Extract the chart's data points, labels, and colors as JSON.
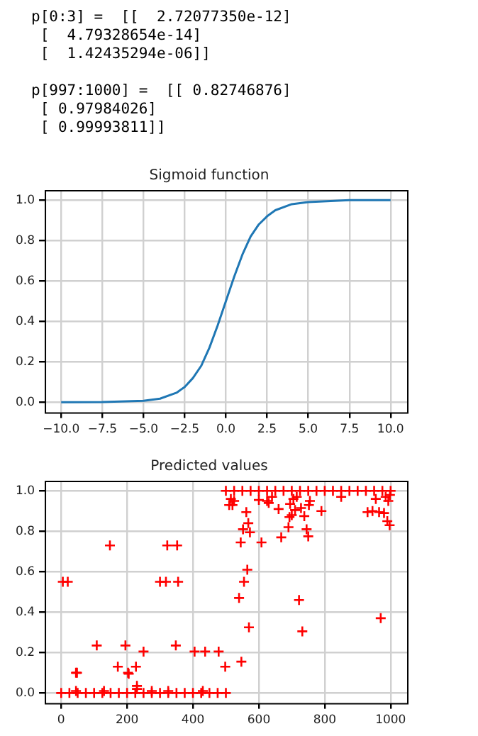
{
  "chart_data": [
    {
      "type": "other",
      "annotations": [
        "p[0:3] =  [[  2.72077350e-12]\n [  4.79328654e-14]\n [  1.42435294e-06]]",
        "p[997:1000] =  [[ 0.82746876]\n [ 0.97984026]\n [ 0.99993811]]"
      ]
    },
    {
      "type": "line",
      "title": "Sigmoid function",
      "color": "#1f77b4",
      "grid": true,
      "x": [
        -10,
        -7.5,
        -5,
        -4,
        -3,
        -2.5,
        -2,
        -1.5,
        -1,
        -0.5,
        0,
        0.5,
        1,
        1.5,
        2,
        2.5,
        3,
        4,
        5,
        7.5,
        10
      ],
      "values": [
        0,
        0.001,
        0.007,
        0.018,
        0.047,
        0.076,
        0.12,
        0.18,
        0.27,
        0.38,
        0.5,
        0.62,
        0.73,
        0.82,
        0.88,
        0.92,
        0.95,
        0.98,
        0.99,
        1.0,
        1.0
      ],
      "xlim": [
        -11,
        11
      ],
      "ylim": [
        -0.05,
        1.05
      ],
      "xticks": [
        {
          "value": -10,
          "label": "−10.0"
        },
        {
          "value": -7.5,
          "label": "−7.5"
        },
        {
          "value": -5,
          "label": "−5.0"
        },
        {
          "value": -2.5,
          "label": "−2.5"
        },
        {
          "value": 0,
          "label": "0.0"
        },
        {
          "value": 2.5,
          "label": "2.5"
        },
        {
          "value": 5,
          "label": "5.0"
        },
        {
          "value": 7.5,
          "label": "7.5"
        },
        {
          "value": 10,
          "label": "10.0"
        }
      ],
      "yticks": [
        {
          "value": 0,
          "label": "0.0"
        },
        {
          "value": 0.2,
          "label": "0.2"
        },
        {
          "value": 0.4,
          "label": "0.4"
        },
        {
          "value": 0.6,
          "label": "0.6"
        },
        {
          "value": 0.8,
          "label": "0.8"
        },
        {
          "value": 1,
          "label": "1.0"
        }
      ]
    },
    {
      "type": "scatter",
      "title": "Predicted values",
      "color": "#ff0000",
      "marker": "cross",
      "grid": true,
      "x": [
        0,
        25,
        50,
        75,
        100,
        125,
        150,
        175,
        200,
        225,
        250,
        275,
        300,
        325,
        350,
        375,
        400,
        425,
        450,
        475,
        500,
        45,
        130,
        230,
        275,
        325,
        430,
        5,
        20,
        45,
        48,
        108,
        148,
        172,
        195,
        203,
        205,
        227,
        230,
        250,
        300,
        318,
        322,
        348,
        352,
        355,
        405,
        437,
        478,
        498,
        500,
        525,
        550,
        575,
        600,
        625,
        650,
        675,
        700,
        725,
        750,
        775,
        800,
        825,
        850,
        875,
        900,
        925,
        950,
        975,
        1000,
        510,
        515,
        520,
        525,
        540,
        545,
        547,
        552,
        555,
        562,
        565,
        568,
        570,
        573,
        600,
        608,
        625,
        630,
        640,
        660,
        668,
        690,
        693,
        695,
        700,
        705,
        710,
        715,
        722,
        728,
        732,
        738,
        745,
        750,
        752,
        755,
        790,
        850,
        930,
        945,
        955,
        965,
        970,
        980,
        985,
        990,
        993,
        997,
        998
      ],
      "values": [
        0,
        0,
        0,
        0,
        0,
        0,
        0,
        0,
        0,
        0,
        0,
        0,
        0,
        0,
        0,
        0,
        0,
        0,
        0,
        0,
        0,
        0.01,
        0.01,
        0.02,
        0.01,
        0.01,
        0.01,
        0.55,
        0.55,
        0.1,
        0.1,
        0.235,
        0.73,
        0.13,
        0.235,
        0.1,
        0.095,
        0.13,
        0.035,
        0.205,
        0.55,
        0.55,
        0.73,
        0.235,
        0.73,
        0.55,
        0.205,
        0.205,
        0.205,
        0.13,
        1,
        1,
        1,
        1,
        1,
        1,
        1,
        1,
        1,
        1,
        1,
        1,
        1,
        1,
        1,
        1,
        1,
        1,
        1,
        1,
        1,
        0.93,
        0.96,
        0.93,
        0.95,
        0.47,
        0.745,
        0.155,
        0.81,
        0.55,
        0.895,
        0.61,
        0.84,
        0.325,
        0.795,
        0.955,
        0.745,
        0.95,
        0.94,
        0.97,
        0.91,
        0.77,
        0.82,
        0.87,
        0.935,
        0.88,
        0.96,
        0.905,
        0.97,
        0.46,
        0.915,
        0.305,
        0.875,
        0.81,
        0.775,
        0.93,
        0.95,
        0.9,
        0.97,
        0.895,
        0.9,
        0.96,
        0.895,
        0.37,
        0.89,
        0.97,
        0.85,
        0.95,
        0.83,
        0.98
      ],
      "xlim": [
        -50,
        1050
      ],
      "ylim": [
        -0.05,
        1.05
      ],
      "xticks": [
        0,
        200,
        400,
        600,
        800,
        1000
      ],
      "yticks": [
        {
          "value": 0,
          "label": "0.0"
        },
        {
          "value": 0.2,
          "label": "0.2"
        },
        {
          "value": 0.4,
          "label": "0.4"
        },
        {
          "value": 0.6,
          "label": "0.6"
        },
        {
          "value": 0.8,
          "label": "0.8"
        },
        {
          "value": 1,
          "label": "1.0"
        }
      ]
    }
  ]
}
